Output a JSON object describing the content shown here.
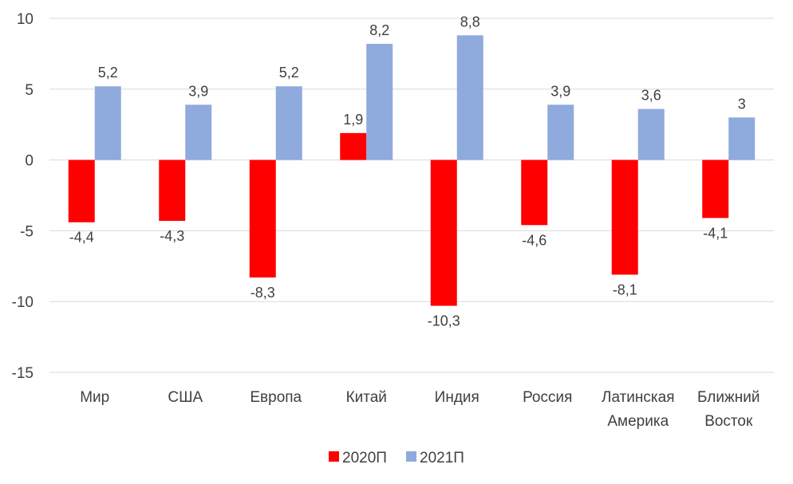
{
  "chart_data": {
    "type": "bar",
    "categories": [
      [
        "Мир"
      ],
      [
        "США"
      ],
      [
        "Европа"
      ],
      [
        "Китай"
      ],
      [
        "Индия"
      ],
      [
        "Россия"
      ],
      [
        "Латинская",
        "Америка"
      ],
      [
        "Ближний",
        "Восток"
      ]
    ],
    "series": [
      {
        "name": "2020П",
        "color": "#FF0000",
        "values": [
          -4.4,
          -4.3,
          -8.3,
          1.9,
          -10.3,
          -4.6,
          -8.1,
          -4.1
        ],
        "labels": [
          "-4,4",
          "-4,3",
          "-8,3",
          "1,9",
          "-10,3",
          "-4,6",
          "-8,1",
          "-4,1"
        ]
      },
      {
        "name": "2021П",
        "color": "#8FAADC",
        "values": [
          5.2,
          3.9,
          5.2,
          8.2,
          8.8,
          3.9,
          3.6,
          3.0
        ],
        "labels": [
          "5,2",
          "3,9",
          "5,2",
          "8,2",
          "8,8",
          "3,9",
          "3,6",
          "3"
        ]
      }
    ],
    "ylim": [
      -15,
      10
    ],
    "yticks": [
      10,
      5,
      0,
      -5,
      -10,
      -15
    ],
    "grid": true,
    "gridline_color": "#D9D9D9",
    "legend_position": "bottom"
  }
}
